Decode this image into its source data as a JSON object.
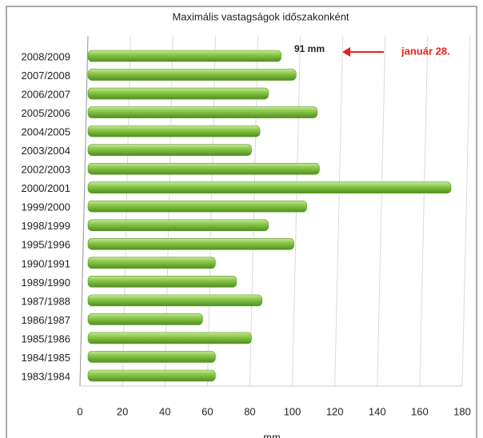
{
  "chart_data": {
    "type": "bar",
    "orientation": "horizontal",
    "title": "Maximális vastagságok időszakonként",
    "xlabel": "mm",
    "categories": [
      "2008/2009",
      "2007/2008",
      "2006/2007",
      "2005/2006",
      "2004/2005",
      "2003/2004",
      "2002/2003",
      "2000/2001",
      "1999/2000",
      "1998/1999",
      "1995/1996",
      "1990/1991",
      "1989/1990",
      "1987/1988",
      "1986/1987",
      "1985/1986",
      "1984/1985",
      "1983/1984"
    ],
    "values": [
      91,
      98,
      85,
      108,
      81,
      77,
      109,
      171,
      103,
      85,
      97,
      60,
      70,
      82,
      54,
      77,
      60,
      60
    ],
    "color": "#7dc142",
    "xlim": [
      0,
      180
    ],
    "xticks": [
      0,
      20,
      40,
      60,
      80,
      100,
      120,
      140,
      160,
      180
    ],
    "grid": true,
    "annotations": [
      "91 mm",
      "január 28."
    ],
    "annotation_color": "#e8201f"
  }
}
